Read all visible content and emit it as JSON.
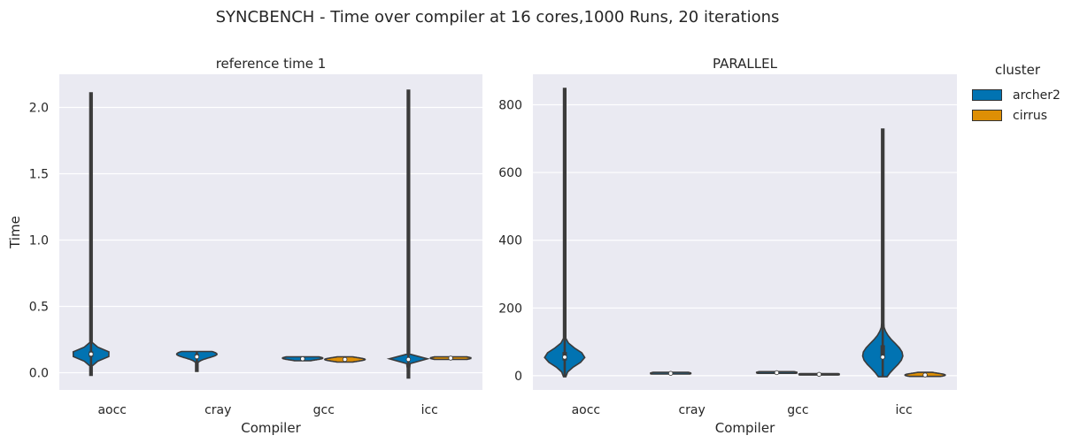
{
  "suptitle": "SYNCBENCH - Time over compiler at 16 cores,1000 Runs, 20 iterations",
  "legend": {
    "title": "cluster",
    "entries": [
      {
        "label": "archer2",
        "color": "#0173b2"
      },
      {
        "label": "cirrus",
        "color": "#de8f05"
      }
    ]
  },
  "chart_data": [
    {
      "type": "violin",
      "title": "reference time 1",
      "xlabel": "Compiler",
      "ylabel": "Time",
      "categories": [
        "aocc",
        "cray",
        "gcc",
        "icc"
      ],
      "hue": [
        "archer2",
        "cirrus"
      ],
      "ylim": [
        -0.13,
        2.25
      ],
      "yticks": [
        0.0,
        0.5,
        1.0,
        1.5,
        2.0
      ],
      "ytick_labels": [
        "0.0",
        "0.5",
        "1.0",
        "1.5",
        "2.0"
      ],
      "grid": true,
      "series": [
        {
          "category": "aocc",
          "cluster": "archer2",
          "min": -0.02,
          "max": 2.11,
          "median": 0.14,
          "q1": 0.12,
          "q3": 0.16,
          "peak": 0.14
        },
        {
          "category": "cray",
          "cluster": "archer2",
          "min": 0.01,
          "max": 0.16,
          "median": 0.12,
          "q1": 0.11,
          "q3": 0.14,
          "peak": 0.14
        },
        {
          "category": "gcc",
          "cluster": "archer2",
          "min": 0.09,
          "max": 0.12,
          "median": 0.105,
          "q1": 0.1,
          "q3": 0.115,
          "peak": 0.11
        },
        {
          "category": "gcc",
          "cluster": "cirrus",
          "min": 0.08,
          "max": 0.12,
          "median": 0.1,
          "q1": 0.095,
          "q3": 0.105,
          "peak": 0.1
        },
        {
          "category": "icc",
          "cluster": "archer2",
          "min": -0.04,
          "max": 2.13,
          "median": 0.1,
          "q1": 0.1,
          "q3": 0.1,
          "peak": 0.1
        },
        {
          "category": "icc",
          "cluster": "cirrus",
          "min": 0.1,
          "max": 0.12,
          "median": 0.11,
          "q1": 0.105,
          "q3": 0.115,
          "peak": 0.11
        }
      ]
    },
    {
      "type": "violin",
      "title": "PARALLEL",
      "xlabel": "Compiler",
      "ylabel": "",
      "categories": [
        "aocc",
        "cray",
        "gcc",
        "icc"
      ],
      "hue": [
        "archer2",
        "cirrus"
      ],
      "ylim": [
        -42,
        890
      ],
      "yticks": [
        0,
        200,
        400,
        600,
        800
      ],
      "ytick_labels": [
        "0",
        "200",
        "400",
        "600",
        "800"
      ],
      "grid": true,
      "series": [
        {
          "category": "aocc",
          "cluster": "archer2",
          "min": -3,
          "max": 848,
          "median": 55,
          "q1": 45,
          "q3": 70,
          "peak": 55
        },
        {
          "category": "cray",
          "cluster": "archer2",
          "min": 5,
          "max": 10,
          "median": 7,
          "q1": 6,
          "q3": 8,
          "peak": 7
        },
        {
          "category": "gcc",
          "cluster": "archer2",
          "min": 7,
          "max": 12,
          "median": 9,
          "q1": 8,
          "q3": 10,
          "peak": 9
        },
        {
          "category": "gcc",
          "cluster": "cirrus",
          "min": 2,
          "max": 6,
          "median": 4,
          "q1": 3,
          "q3": 5,
          "peak": 4
        },
        {
          "category": "icc",
          "cluster": "archer2",
          "min": -3,
          "max": 728,
          "median": 55,
          "q1": 50,
          "q3": 90,
          "peak": 60
        },
        {
          "category": "icc",
          "cluster": "cirrus",
          "min": -2,
          "max": 10,
          "median": 2,
          "q1": 1,
          "q3": 3,
          "peak": 2
        }
      ]
    }
  ]
}
